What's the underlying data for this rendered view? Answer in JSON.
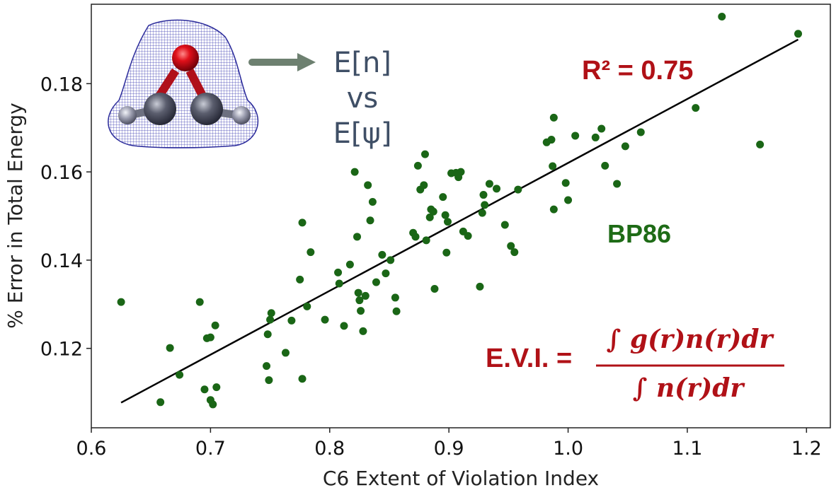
{
  "chart_data": {
    "type": "scatter",
    "xlabel": "C6 Extent of Violation Index",
    "ylabel": "% Error in Total Energy",
    "xlim": [
      0.6,
      1.22
    ],
    "ylim": [
      0.102,
      0.198
    ],
    "xticks": [
      "0.6",
      "0.7",
      "0.8",
      "0.9",
      "1.0",
      "1.1",
      "1.2"
    ],
    "yticks": [
      "0.12",
      "0.14",
      "0.16",
      "0.18"
    ],
    "grid": false,
    "marker_color": "#1a6616",
    "fit_line": {
      "x": [
        0.625,
        1.193
      ],
      "y": [
        0.1077,
        0.19
      ],
      "color": "#000000"
    },
    "series": [
      {
        "points": [
          [
            0.625,
            0.1305
          ],
          [
            0.658,
            0.1078
          ],
          [
            0.666,
            0.1201
          ],
          [
            0.674,
            0.114
          ],
          [
            0.691,
            0.1305
          ],
          [
            0.695,
            0.1107
          ],
          [
            0.697,
            0.1223
          ],
          [
            0.7,
            0.1225
          ],
          [
            0.7,
            0.1083
          ],
          [
            0.702,
            0.1073
          ],
          [
            0.704,
            0.1252
          ],
          [
            0.705,
            0.1112
          ],
          [
            0.747,
            0.116
          ],
          [
            0.748,
            0.1232
          ],
          [
            0.749,
            0.1128
          ],
          [
            0.75,
            0.1265
          ],
          [
            0.751,
            0.128
          ],
          [
            0.763,
            0.119
          ],
          [
            0.768,
            0.1263
          ],
          [
            0.775,
            0.1356
          ],
          [
            0.777,
            0.1485
          ],
          [
            0.777,
            0.1131
          ],
          [
            0.781,
            0.1295
          ],
          [
            0.784,
            0.1418
          ],
          [
            0.796,
            0.1265
          ],
          [
            0.807,
            0.1372
          ],
          [
            0.808,
            0.1347
          ],
          [
            0.812,
            0.1251
          ],
          [
            0.817,
            0.139
          ],
          [
            0.821,
            0.16
          ],
          [
            0.823,
            0.1453
          ],
          [
            0.824,
            0.1326
          ],
          [
            0.825,
            0.1309
          ],
          [
            0.826,
            0.1285
          ],
          [
            0.828,
            0.1239
          ],
          [
            0.83,
            0.1319
          ],
          [
            0.832,
            0.157
          ],
          [
            0.834,
            0.149
          ],
          [
            0.836,
            0.1532
          ],
          [
            0.839,
            0.135
          ],
          [
            0.844,
            0.1412
          ],
          [
            0.847,
            0.137
          ],
          [
            0.851,
            0.14
          ],
          [
            0.855,
            0.1315
          ],
          [
            0.856,
            0.1284
          ],
          [
            0.87,
            0.1462
          ],
          [
            0.872,
            0.1453
          ],
          [
            0.874,
            0.1614
          ],
          [
            0.876,
            0.156
          ],
          [
            0.879,
            0.157
          ],
          [
            0.88,
            0.164
          ],
          [
            0.881,
            0.1445
          ],
          [
            0.884,
            0.1497
          ],
          [
            0.885,
            0.1515
          ],
          [
            0.887,
            0.151
          ],
          [
            0.888,
            0.1335
          ],
          [
            0.895,
            0.1543
          ],
          [
            0.897,
            0.1502
          ],
          [
            0.898,
            0.1417
          ],
          [
            0.899,
            0.1487
          ],
          [
            0.902,
            0.1597
          ],
          [
            0.906,
            0.1598
          ],
          [
            0.908,
            0.1588
          ],
          [
            0.91,
            0.16
          ],
          [
            0.912,
            0.1465
          ],
          [
            0.916,
            0.1455
          ],
          [
            0.926,
            0.134
          ],
          [
            0.928,
            0.1507
          ],
          [
            0.929,
            0.1548
          ],
          [
            0.93,
            0.1525
          ],
          [
            0.934,
            0.1573
          ],
          [
            0.94,
            0.1562
          ],
          [
            0.947,
            0.148
          ],
          [
            0.952,
            0.1432
          ],
          [
            0.955,
            0.1418
          ],
          [
            0.958,
            0.156
          ],
          [
            0.982,
            0.1667
          ],
          [
            0.986,
            0.1673
          ],
          [
            0.987,
            0.1613
          ],
          [
            0.988,
            0.1723
          ],
          [
            0.988,
            0.1515
          ],
          [
            0.998,
            0.1575
          ],
          [
            1.0,
            0.1536
          ],
          [
            1.006,
            0.1682
          ],
          [
            1.023,
            0.1678
          ],
          [
            1.028,
            0.1698
          ],
          [
            1.031,
            0.1614
          ],
          [
            1.041,
            0.1573
          ],
          [
            1.048,
            0.1658
          ],
          [
            1.061,
            0.169
          ],
          [
            1.107,
            0.1745
          ],
          [
            1.129,
            0.1952
          ],
          [
            1.161,
            0.1662
          ],
          [
            1.193,
            0.1913
          ]
        ]
      }
    ]
  },
  "annotations": {
    "en_label": "E[n]",
    "vs_label": "vs",
    "epsi_label": "E[ψ]",
    "r2_label": "R² = 0.75",
    "method_label": "BP86",
    "evi_label": "E.V.I. =",
    "evi_numerator": "∫ g(r)n(r)dr",
    "evi_denominator": "∫ n(r)dr",
    "arrow_color": "#6d8070",
    "molecule_icon": "oxirene-molecule-icon"
  }
}
